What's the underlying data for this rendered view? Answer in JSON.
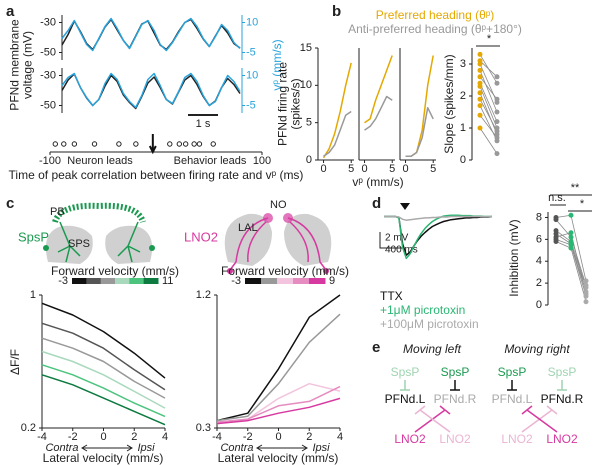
{
  "panel_labels": [
    "a",
    "b",
    "c",
    "d",
    "e"
  ],
  "diagrams": {
    "spsp": {
      "name": "SpsP",
      "regions": [
        "PB",
        "SPS"
      ]
    },
    "lno2": {
      "name": "LNO2",
      "regions": [
        "NO",
        "LAL"
      ]
    }
  },
  "circuit": {
    "moving_left": {
      "title": "Moving left",
      "labels": [
        "SpsP",
        "SpsP",
        "PFNd.L",
        "PFNd.R",
        "LNO2",
        "LNO2"
      ]
    },
    "moving_right": {
      "title": "Moving right",
      "labels": [
        "SpsP",
        "SpsP",
        "PFNd.L",
        "PFNd.R",
        "LNO2",
        "LNO2"
      ]
    }
  },
  "chart_data": [
    {
      "type": "line",
      "ylabel": [
        "PFNd membrane",
        "voltage (mV)"
      ],
      "y2label": "vᵖ (mm/s)",
      "ylim": [
        -55,
        -25
      ],
      "yticks": [
        -30,
        -50
      ],
      "y2lim": [
        -8.75,
        13.75
      ],
      "y2ticks": [
        10,
        -5
      ],
      "series": [
        {
          "color": "#222222",
          "values": [
            -45,
            -38,
            -29,
            -36,
            -44,
            -48,
            -41,
            -33,
            -28,
            -35,
            -42,
            -47,
            -39,
            -31,
            -29,
            -37,
            -45,
            -48,
            -43,
            -36,
            -30,
            -28,
            -34,
            -41,
            -46,
            -39,
            -32,
            -37,
            -44,
            -47
          ]
        },
        {
          "color": "#29a3dc",
          "axis": "y2",
          "values": [
            2,
            6,
            11,
            5,
            -1,
            -4,
            2,
            8,
            12,
            7,
            1,
            -3,
            3,
            9,
            11,
            6,
            -1,
            -4,
            0,
            5,
            10,
            12,
            8,
            2,
            -2,
            3,
            9,
            6,
            0,
            -3
          ]
        }
      ]
    },
    {
      "type": "line",
      "ylim": [
        -55,
        -25
      ],
      "yticks": [
        -30,
        -50
      ],
      "y2lim": [
        -8.75,
        13.75
      ],
      "y2ticks": [
        10,
        -5
      ],
      "scale_bar": "1 s",
      "series": [
        {
          "color": "#222222",
          "values": [
            -40,
            -33,
            -29,
            -38,
            -45,
            -50,
            -46,
            -37,
            -30,
            -34,
            -43,
            -48,
            -52,
            -44,
            -35,
            -31,
            -38,
            -46,
            -49,
            -41,
            -33,
            -30,
            -36,
            -44,
            -50,
            -47,
            -38,
            -32,
            -36,
            -42
          ]
        },
        {
          "color": "#29a3dc",
          "axis": "y2",
          "values": [
            5,
            9,
            11,
            4,
            -1,
            -5,
            -2,
            6,
            11,
            8,
            1,
            -3,
            -6,
            0,
            8,
            11,
            5,
            -2,
            -4,
            2,
            9,
            11,
            7,
            0,
            -5,
            -3,
            4,
            10,
            7,
            2
          ]
        }
      ]
    },
    {
      "type": "scatter",
      "x": [
        -95,
        -87,
        -77,
        -58,
        -35,
        -19,
        13,
        22,
        28,
        36,
        41,
        54
      ],
      "median": -3,
      "xlim": [
        -100,
        100
      ],
      "xticks": [
        -100,
        100
      ],
      "xlabel": "Time of peak correlation between firing rate and vᵖ (ms)",
      "annotations": [
        "Neuron leads",
        "Behavior leads"
      ]
    },
    {
      "type": "line",
      "ylabel": [
        "PFNd firing rate",
        "(spikes/s)"
      ],
      "x": [
        0,
        1,
        2,
        3,
        4,
        5
      ],
      "xlim": [
        -1,
        5.5
      ],
      "xticks": [
        0,
        5
      ],
      "ylim": [
        0,
        15
      ],
      "yticks": [
        0,
        5,
        10,
        15
      ],
      "series": [
        {
          "name": "Preferred heading (θᵖ)",
          "color": "#e5a800",
          "values": [
            0.3,
            1.5,
            3.5,
            6.5,
            10,
            13
          ]
        },
        {
          "name": "Anti-preferred heading (θᵖ+180°)",
          "color": "#999999",
          "values": [
            0.5,
            1,
            2,
            4,
            6,
            6.5
          ]
        }
      ]
    },
    {
      "type": "line",
      "xlabel": "vᵖ (mm/s)",
      "x": [
        0,
        1,
        2,
        3,
        4,
        5
      ],
      "xlim": [
        -1,
        5.5
      ],
      "xticks": [
        0,
        5
      ],
      "ylim": [
        0,
        15
      ],
      "series": [
        {
          "color": "#e5a800",
          "values": [
            5,
            5.5,
            8,
            10,
            12,
            14
          ]
        },
        {
          "color": "#999999",
          "values": [
            4,
            4.5,
            5.5,
            7,
            8.5,
            8
          ]
        }
      ]
    },
    {
      "type": "line",
      "x": [
        0,
        1,
        2,
        3,
        4,
        5
      ],
      "xlim": [
        -1,
        5.5
      ],
      "xticks": [
        0,
        5
      ],
      "ylim": [
        0,
        15
      ],
      "series": [
        {
          "color": "#e5a800",
          "values": [
            0.5,
            0.5,
            1,
            4,
            10,
            14
          ]
        },
        {
          "color": "#999999",
          "values": [
            0.5,
            0.5,
            1,
            3,
            7,
            5.5
          ]
        }
      ]
    },
    {
      "type": "paired",
      "ylabel": [
        "Slope (spikes/mm)"
      ],
      "ylim": [
        0,
        3.5
      ],
      "yticks": [
        0,
        1,
        2,
        3
      ],
      "significance": [
        "*"
      ],
      "series": [
        {
          "color": "#e5a800",
          "values": [
            3.3,
            3.1,
            3.0,
            2.8,
            2.6,
            2.4,
            2.3,
            2.1,
            1.9,
            1.7,
            1.4,
            1.0
          ]
        },
        {
          "color": "#999999",
          "values": [
            2.4,
            2.6,
            1.8,
            1.5,
            1.9,
            1.2,
            1.0,
            0.8,
            0.9,
            0.6,
            0.7,
            0.2
          ]
        }
      ]
    },
    {
      "type": "line",
      "ylabel": [
        "ΔF/F"
      ],
      "xlabel": "Lateral velocity (mm/s)",
      "direction_labels": [
        "Contra",
        "Ipsi"
      ],
      "colorbar": {
        "label": "Forward velocity (mm/s)",
        "ticks": [
          -3,
          11
        ]
      },
      "x": [
        -4,
        -2,
        0,
        2,
        4
      ],
      "xlim": [
        -4,
        4
      ],
      "xticks": [
        -4,
        -2,
        0,
        2,
        4
      ],
      "ylim": [
        0.2,
        1
      ],
      "yticks": [
        1,
        0.2
      ],
      "series": [
        {
          "color": "#111111",
          "values": [
            0.95,
            0.88,
            0.78,
            0.65,
            0.5
          ]
        },
        {
          "color": "#555555",
          "values": [
            0.83,
            0.77,
            0.68,
            0.55,
            0.43
          ]
        },
        {
          "color": "#999999",
          "values": [
            0.74,
            0.68,
            0.6,
            0.48,
            0.38
          ]
        },
        {
          "color": "#a9d9bd",
          "values": [
            0.66,
            0.6,
            0.52,
            0.42,
            0.32
          ]
        },
        {
          "color": "#4cc47e",
          "values": [
            0.58,
            0.52,
            0.44,
            0.35,
            0.27
          ]
        },
        {
          "color": "#0d7a40",
          "values": [
            0.52,
            0.46,
            0.38,
            0.3,
            0.22
          ]
        }
      ]
    },
    {
      "type": "line",
      "xlabel": "Lateral velocity (mm/s)",
      "direction_labels": [
        "Contra",
        "Ipsi"
      ],
      "colorbar": {
        "label": "Forward velocity (mm/s)",
        "ticks": [
          -3,
          9
        ]
      },
      "x": [
        -4,
        -2,
        0,
        2,
        4
      ],
      "xlim": [
        -4,
        4
      ],
      "xticks": [
        -4,
        -2,
        0,
        2,
        4
      ],
      "ylim": [
        0.3,
        1.2
      ],
      "yticks": [
        1.2,
        0.3
      ],
      "series": [
        {
          "color": "#111111",
          "values": [
            0.35,
            0.4,
            0.7,
            1.05,
            1.2
          ]
        },
        {
          "color": "#999999",
          "values": [
            0.35,
            0.38,
            0.6,
            0.88,
            1.07
          ]
        },
        {
          "color": "#f2c4dd",
          "values": [
            0.33,
            0.36,
            0.5,
            0.6,
            0.55
          ]
        },
        {
          "color": "#e58cc0",
          "values": [
            0.34,
            0.36,
            0.45,
            0.48,
            0.58
          ]
        },
        {
          "color": "#d63aa0",
          "values": [
            0.33,
            0.35,
            0.4,
            0.44,
            0.5
          ]
        }
      ]
    },
    {
      "type": "line",
      "scale_bars": [
        "2 mV",
        "400 ms"
      ],
      "ylim": [
        -10,
        1
      ],
      "series": [
        {
          "name": "TTX",
          "color": "#111111",
          "values": [
            0,
            0,
            0,
            0,
            -0.2,
            -6,
            -8.5,
            -7.8,
            -6.5,
            -5.3,
            -4.3,
            -3.5,
            -2.8,
            -2.2,
            -1.8,
            -1.4,
            -1.1,
            -0.9,
            -0.7,
            -0.6,
            -0.5,
            -0.4,
            -0.3,
            -0.3,
            -0.2,
            -0.2,
            -0.1,
            -0.1,
            -0.1,
            0
          ]
        },
        {
          "name": "+1μM picrotoxin",
          "color": "#2bb673",
          "values": [
            0,
            0,
            0,
            0,
            -0.3,
            -6.8,
            -9.2,
            -8.2,
            -6.6,
            -5,
            -3.7,
            -2.6,
            -1.8,
            -1.1,
            -0.6,
            -0.2,
            0.1,
            0.2,
            0.3,
            0.3,
            0.3,
            0.2,
            0.2,
            0.2,
            0.1,
            0.1,
            0.1,
            0,
            0,
            0
          ]
        },
        {
          "name": "+100μM picrotoxin",
          "color": "#aaaaaa",
          "values": [
            0,
            0,
            0,
            0,
            -0.1,
            -0.6,
            -0.8,
            -0.7,
            -0.6,
            -0.5,
            -0.4,
            -0.3,
            -0.3,
            -0.2,
            -0.2,
            -0.1,
            -0.1,
            -0.1,
            0,
            0,
            0,
            0,
            0,
            0,
            0,
            0,
            0,
            0,
            0,
            0
          ]
        }
      ]
    },
    {
      "type": "paired",
      "ylabel": [
        "Inhibition (mV)"
      ],
      "ylim": [
        0,
        8.5
      ],
      "yticks": [
        0,
        2,
        4,
        6,
        8
      ],
      "significance": [
        "n.s.",
        "**",
        "*"
      ],
      "series": [
        {
          "color": "#555555",
          "values": [
            8,
            7.8,
            6.8,
            6.5,
            6.2,
            6.0,
            5.8
          ]
        },
        {
          "color": "#2bb673",
          "values": [
            8.2,
            6.2,
            5.8,
            5.6,
            6.6,
            5.5,
            5.2
          ]
        },
        {
          "color": "#aaaaaa",
          "values": [
            2.2,
            1.8,
            1.6,
            1.2,
            1.0,
            0.8,
            0.3
          ]
        }
      ]
    }
  ]
}
